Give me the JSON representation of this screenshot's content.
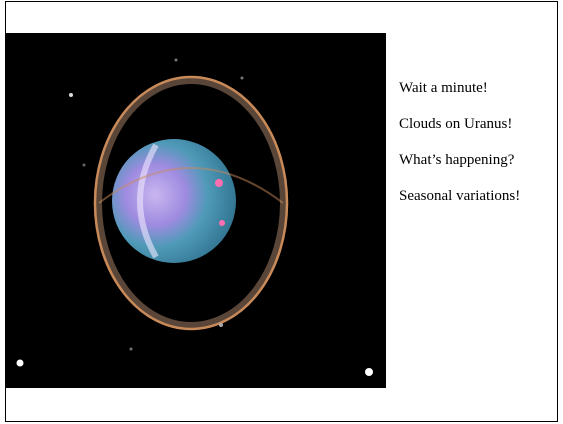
{
  "slide": {
    "lines": [
      "Wait a minute!",
      "Clouds on Uranus!",
      "What’s happening?",
      "Seasonal variations!"
    ]
  }
}
